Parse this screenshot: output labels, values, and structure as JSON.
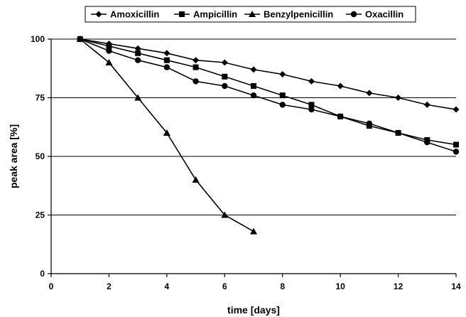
{
  "chart_data": {
    "type": "line",
    "xlabel": "time [days]",
    "ylabel": "peak area [%]",
    "xlim": [
      0,
      14
    ],
    "ylim": [
      0,
      100
    ],
    "xticks": [
      "0",
      "2",
      "4",
      "6",
      "8",
      "10",
      "12",
      "14"
    ],
    "yticks": [
      "0",
      "25",
      "50",
      "75",
      "100"
    ],
    "grid": "horizontal",
    "legend_position": "top",
    "series": [
      {
        "name": "Amoxicillin",
        "marker": "diamond",
        "x": [
          1,
          2,
          3,
          4,
          5,
          6,
          7,
          8,
          9,
          10,
          11,
          12,
          13,
          14
        ],
        "values": [
          100,
          98,
          96,
          94,
          91,
          90,
          87,
          85,
          82,
          80,
          77,
          75,
          72,
          70
        ]
      },
      {
        "name": "Ampicillin",
        "marker": "square",
        "x": [
          1,
          2,
          3,
          4,
          5,
          6,
          7,
          8,
          9,
          10,
          11,
          12,
          13,
          14
        ],
        "values": [
          100,
          97,
          94,
          91,
          88,
          84,
          80,
          76,
          72,
          67,
          63,
          60,
          57,
          55
        ]
      },
      {
        "name": "Benzylpenicillin",
        "marker": "triangle",
        "x": [
          1,
          2,
          3,
          4,
          5,
          6,
          7
        ],
        "values": [
          100,
          90,
          75,
          60,
          40,
          25,
          18
        ]
      },
      {
        "name": "Oxacillin",
        "marker": "circle",
        "x": [
          1,
          2,
          3,
          4,
          5,
          6,
          7,
          8,
          9,
          10,
          11,
          12,
          13,
          14
        ],
        "values": [
          100,
          95,
          91,
          88,
          82,
          80,
          76,
          72,
          70,
          67,
          64,
          60,
          56,
          52
        ]
      }
    ]
  }
}
